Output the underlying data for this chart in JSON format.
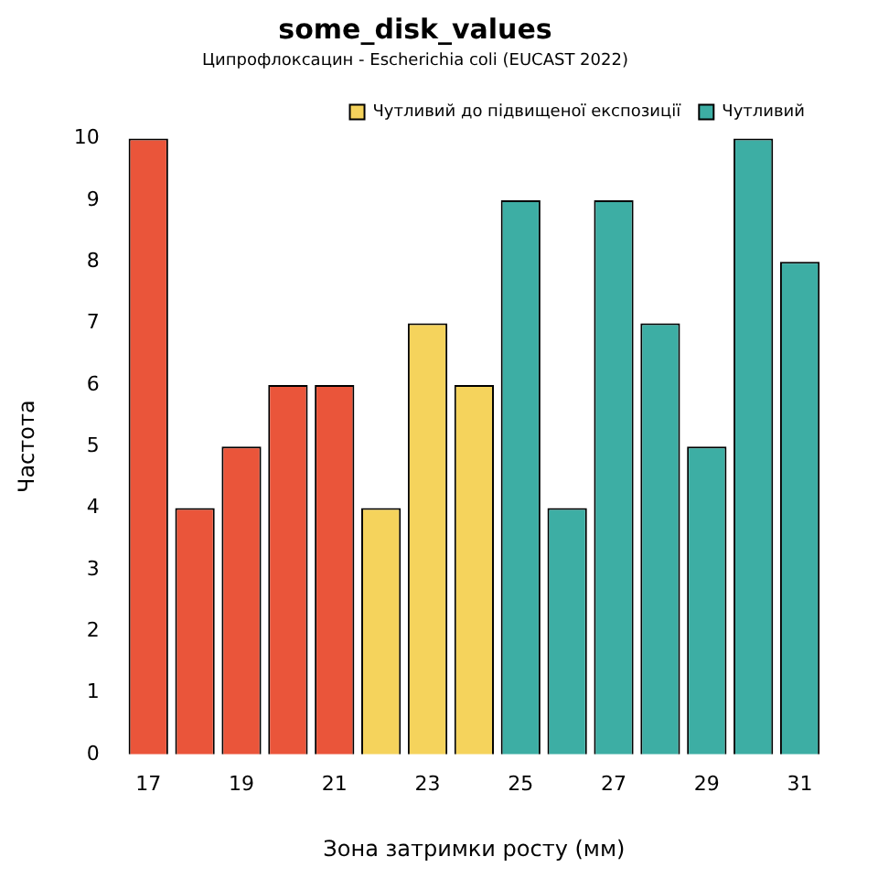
{
  "chart_data": {
    "type": "bar",
    "title": "some_disk_values",
    "subtitle": "Ципрофлоксацин - Escherichia coli (EUCAST 2022)",
    "xlabel": "Зона затримки росту (мм)",
    "ylabel": "Частота",
    "categories": [
      "17",
      null,
      "19",
      null,
      "21",
      null,
      "23",
      null,
      "25",
      null,
      "27",
      null,
      "29",
      null,
      "31"
    ],
    "series": [
      {
        "color": "#ea553a",
        "values": [
          10,
          4,
          5,
          6,
          6,
          null,
          null,
          null,
          null,
          null,
          null,
          null,
          null,
          null,
          null
        ]
      },
      {
        "name": "Чутливий до підвищеної експозиції",
        "color": "#f5d35c",
        "values": [
          null,
          null,
          null,
          null,
          null,
          4,
          7,
          6,
          null,
          null,
          null,
          null,
          null,
          null,
          null
        ]
      },
      {
        "name": "Чутливий",
        "color": "#3daea4",
        "values": [
          null,
          null,
          null,
          null,
          null,
          null,
          null,
          null,
          9,
          4,
          9,
          7,
          5,
          10,
          8
        ]
      }
    ],
    "ylim": [
      0,
      10
    ],
    "yticks": [
      0,
      1,
      2,
      3,
      4,
      5,
      6,
      7,
      8,
      9,
      10
    ],
    "grid": false,
    "legend": "top right"
  }
}
